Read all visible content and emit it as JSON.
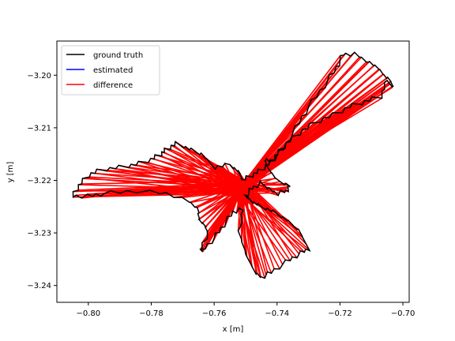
{
  "chart_data": {
    "type": "line",
    "xlabel": "x [m]",
    "ylabel": "y [m]",
    "xlim": [
      -0.81,
      -0.698
    ],
    "ylim": [
      -3.2432,
      -3.1935
    ],
    "xticks": [
      -0.8,
      -0.78,
      -0.76,
      -0.74,
      -0.72,
      -0.7
    ],
    "xtick_labels": [
      "−0.80",
      "−0.78",
      "−0.76",
      "−0.74",
      "−0.72",
      "−0.70"
    ],
    "yticks": [
      -3.2,
      -3.21,
      -3.22,
      -3.23,
      -3.24
    ],
    "ytick_labels": [
      "−3.20",
      "−3.21",
      "−3.22",
      "−3.23",
      "−3.24"
    ],
    "grid": false,
    "legend_position": "upper-left",
    "series": [
      {
        "name": "ground truth",
        "color": "#000000"
      },
      {
        "name": "estimated",
        "color": "#0000ff"
      },
      {
        "name": "difference",
        "color": "#ff0000"
      }
    ],
    "ground_truth_x": [
      -0.752,
      -0.755,
      -0.76,
      -0.764,
      -0.768,
      -0.772,
      -0.775,
      -0.777,
      -0.78,
      -0.785,
      -0.79,
      -0.796,
      -0.8,
      -0.803,
      -0.805,
      -0.8,
      -0.795,
      -0.785,
      -0.775,
      -0.768,
      -0.765,
      -0.765,
      -0.763,
      -0.762,
      -0.764,
      -0.764,
      -0.76,
      -0.757,
      -0.754,
      -0.751,
      -0.752,
      -0.75,
      -0.747,
      -0.745,
      -0.742,
      -0.737,
      -0.733,
      -0.73,
      -0.733,
      -0.737,
      -0.741,
      -0.745,
      -0.748,
      -0.75,
      -0.748,
      -0.745,
      -0.743,
      -0.74,
      -0.737,
      -0.736,
      -0.74,
      -0.743,
      -0.744,
      -0.742,
      -0.738,
      -0.734,
      -0.73,
      -0.725,
      -0.721,
      -0.719,
      -0.715,
      -0.711,
      -0.708,
      -0.706,
      -0.704,
      -0.703,
      -0.705,
      -0.707,
      -0.712,
      -0.717,
      -0.722,
      -0.728,
      -0.733,
      -0.737,
      -0.74,
      -0.742,
      -0.745,
      -0.748,
      -0.751,
      -0.752
    ],
    "ground_truth_y": [
      -3.2185,
      -3.217,
      -3.2175,
      -3.215,
      -3.214,
      -3.213,
      -3.214,
      -3.215,
      -3.216,
      -3.217,
      -3.2175,
      -3.218,
      -3.219,
      -3.221,
      -3.223,
      -3.223,
      -3.2225,
      -3.222,
      -3.2225,
      -3.224,
      -3.2255,
      -3.2275,
      -3.2285,
      -3.23,
      -3.233,
      -3.2335,
      -3.231,
      -3.2285,
      -3.226,
      -3.2255,
      -3.23,
      -3.234,
      -3.2375,
      -3.2385,
      -3.2375,
      -3.2355,
      -3.234,
      -3.233,
      -3.2295,
      -3.2275,
      -3.226,
      -3.225,
      -3.224,
      -3.223,
      -3.2215,
      -3.2205,
      -3.2215,
      -3.2225,
      -3.222,
      -3.221,
      -3.22,
      -3.2175,
      -3.216,
      -3.2165,
      -3.214,
      -3.21,
      -3.206,
      -3.202,
      -3.1985,
      -3.196,
      -3.196,
      -3.1975,
      -3.1985,
      -3.2,
      -3.201,
      -3.2025,
      -3.201,
      -3.204,
      -3.205,
      -3.206,
      -3.2075,
      -3.209,
      -3.211,
      -3.213,
      -3.215,
      -3.2165,
      -3.218,
      -3.219,
      -3.22,
      -3.2185
    ],
    "hub_x": -0.7515,
    "hub_y": -3.2213
  }
}
